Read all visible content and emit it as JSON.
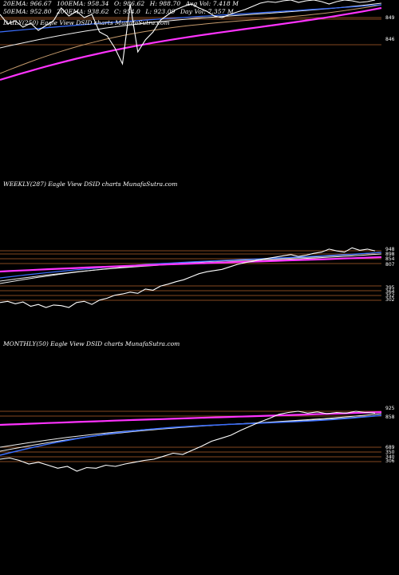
{
  "colors": {
    "background": "#000000",
    "price": "#ffffff",
    "ma_pink": "#ff33ff",
    "ma_blue": "#3b6fff",
    "ma_white": "#eeeeee",
    "ma_tan": "#c49a6c",
    "level_line": "#b0622a"
  },
  "stats": {
    "row1": [
      "20EMA: 966.67",
      "100EMA: 958.34",
      "O: 986.62",
      "H: 988.70",
      "Avg Vol: 7.418 M"
    ],
    "row2": [
      "50EMA: 952.80",
      "200EMA: 938.62",
      "C: 954.0",
      "L: 923.09",
      "Day Vol: 7.357 M"
    ]
  },
  "chart_data": [
    {
      "type": "line",
      "title": "DAILY(250) Eagle View DSID charts MunafaSutra.com",
      "y_ticks": [
        "849",
        "846"
      ],
      "series": [
        {
          "values": [
            0.82,
            0.7,
            0.74,
            0.66,
            0.71,
            0.62,
            0.68,
            0.74,
            0.9,
            0.8,
            0.86,
            0.78,
            0.82,
            0.6,
            0.55,
            0.4,
            0.2,
            0.95,
            0.35,
            0.5,
            0.6,
            0.75,
            0.82,
            0.88,
            0.92,
            0.95,
            0.9,
            0.86,
            0.8,
            0.78,
            0.82,
            0.85,
            0.88,
            0.92,
            0.96,
            0.98,
            0.97,
            0.99,
            1.0,
            0.97,
            0.99,
            1.0,
            0.98,
            0.95,
            0.98,
            1.0,
            0.99,
            0.97,
            0.98,
            1.0
          ]
        }
      ]
    },
    {
      "type": "line",
      "title": "WEEKLY(287) Eagle View DSID charts MunafaSutra.com",
      "y_ticks": [
        "948",
        "898",
        "854",
        "807",
        "395",
        "364",
        "352",
        "302"
      ],
      "series": [
        {
          "values": [
            0.08,
            0.1,
            0.06,
            0.09,
            0.02,
            0.05,
            0.0,
            0.04,
            0.03,
            0.0,
            0.08,
            0.1,
            0.05,
            0.12,
            0.15,
            0.2,
            0.22,
            0.25,
            0.23,
            0.3,
            0.28,
            0.35,
            0.38,
            0.42,
            0.45,
            0.5,
            0.55,
            0.58,
            0.6,
            0.62,
            0.66,
            0.7,
            0.73,
            0.75,
            0.78,
            0.8,
            0.82,
            0.84,
            0.86,
            0.83,
            0.85,
            0.88,
            0.9,
            0.95,
            0.92,
            0.9,
            0.97,
            0.93,
            0.95,
            0.92
          ]
        }
      ]
    },
    {
      "type": "line",
      "title": "MONTHLY(50) Eagle View DSID charts MunafaSutra.com",
      "y_ticks": [
        "925",
        "858",
        "689",
        "350",
        "340",
        "306"
      ],
      "series": [
        {
          "values": [
            0.2,
            0.22,
            0.18,
            0.12,
            0.15,
            0.1,
            0.05,
            0.08,
            0.0,
            0.06,
            0.05,
            0.1,
            0.08,
            0.12,
            0.15,
            0.18,
            0.2,
            0.25,
            0.3,
            0.28,
            0.35,
            0.42,
            0.5,
            0.55,
            0.6,
            0.68,
            0.75,
            0.82,
            0.88,
            0.95,
            0.98,
            1.0,
            0.97,
            0.99,
            0.96,
            0.98,
            0.97,
            1.0,
            0.98,
            0.97
          ]
        }
      ]
    }
  ]
}
